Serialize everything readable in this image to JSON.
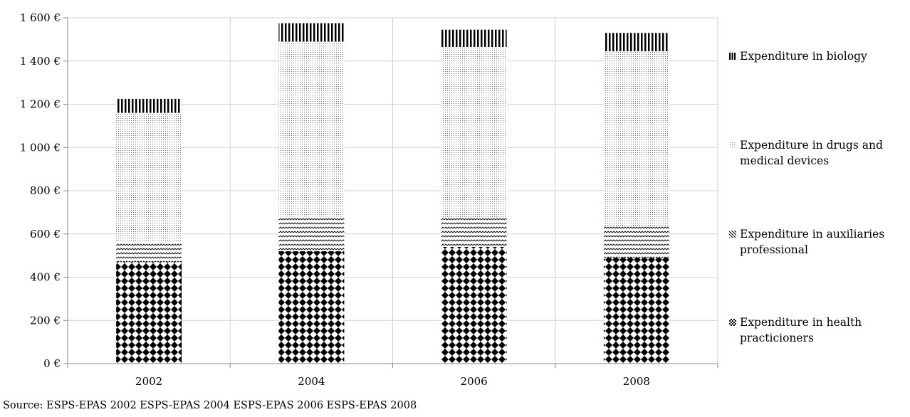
{
  "chart_data": {
    "type": "bar",
    "stacked": true,
    "categories": [
      "2002",
      "2004",
      "2006",
      "2008"
    ],
    "series": [
      {
        "name": "Expenditure in health practicioners",
        "values": [
          470,
          520,
          540,
          490
        ]
      },
      {
        "name": "Expenditure in auxiliaries professional",
        "values": [
          95,
          160,
          135,
          145
        ]
      },
      {
        "name": "Expenditure  in drugs and medical devices",
        "values": [
          595,
          810,
          790,
          810
        ]
      },
      {
        "name": "Expenditure in biology",
        "values": [
          65,
          85,
          80,
          85
        ]
      }
    ],
    "y_ticks": [
      "0 €",
      "200 €",
      "400 €",
      "600 €",
      "800 €",
      "1 000 €",
      "1 200 €",
      "1 400 €",
      "1 600 €"
    ],
    "ylim": [
      0,
      1600
    ],
    "y_step": 200,
    "grid": true,
    "legend_position": "right",
    "title": "",
    "xlabel": "",
    "ylabel": ""
  },
  "source": "Source: ESPS-EPAS 2002 ESPS-EPAS 2004 ESPS-EPAS 2006 ESPS-EPAS 2008"
}
